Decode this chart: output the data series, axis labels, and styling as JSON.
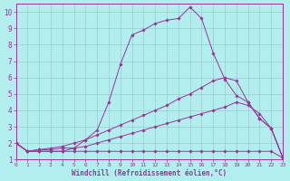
{
  "xlabel": "Windchill (Refroidissement éolien,°C)",
  "bg_color": "#b2eeee",
  "line_color": "#993399",
  "grid_color": "#99cccc",
  "xlim": [
    0,
    23
  ],
  "ylim": [
    1,
    10.5
  ],
  "xticks": [
    0,
    1,
    2,
    3,
    4,
    5,
    6,
    7,
    8,
    9,
    10,
    11,
    12,
    13,
    14,
    15,
    16,
    17,
    18,
    19,
    20,
    21,
    22,
    23
  ],
  "yticks": [
    1,
    2,
    3,
    4,
    5,
    6,
    7,
    8,
    9,
    10
  ],
  "line1_x": [
    0,
    1,
    2,
    3,
    4,
    5,
    6,
    7,
    8,
    9,
    10,
    11,
    12,
    13,
    14,
    15,
    16,
    17,
    18,
    19,
    20,
    21,
    22,
    23
  ],
  "line1_y": [
    2.0,
    1.5,
    1.5,
    1.5,
    1.5,
    1.5,
    1.5,
    1.5,
    1.5,
    1.5,
    1.5,
    1.5,
    1.5,
    1.5,
    1.5,
    1.5,
    1.5,
    1.5,
    1.5,
    1.5,
    1.5,
    1.5,
    1.5,
    1.1
  ],
  "line2_x": [
    0,
    1,
    2,
    3,
    4,
    5,
    6,
    7,
    8,
    9,
    10,
    11,
    12,
    13,
    14,
    15,
    16,
    17,
    18,
    19,
    20,
    21,
    22,
    23
  ],
  "line2_y": [
    2.0,
    1.5,
    1.6,
    1.6,
    1.7,
    1.7,
    1.8,
    2.0,
    2.2,
    2.4,
    2.6,
    2.8,
    3.0,
    3.2,
    3.4,
    3.6,
    3.8,
    4.0,
    4.2,
    4.5,
    4.3,
    3.8,
    2.9,
    1.1
  ],
  "line3_x": [
    0,
    1,
    2,
    3,
    4,
    5,
    6,
    7,
    8,
    9,
    10,
    11,
    12,
    13,
    14,
    15,
    16,
    17,
    18,
    19,
    20,
    21,
    22,
    23
  ],
  "line3_y": [
    2.0,
    1.5,
    1.6,
    1.7,
    1.8,
    2.0,
    2.2,
    2.5,
    2.8,
    3.1,
    3.4,
    3.7,
    4.0,
    4.3,
    4.7,
    5.0,
    5.4,
    5.8,
    6.0,
    5.8,
    4.5,
    3.5,
    2.9,
    1.1
  ],
  "line4_x": [
    0,
    1,
    2,
    3,
    4,
    5,
    6,
    7,
    8,
    9,
    10,
    11,
    12,
    13,
    14,
    15,
    16,
    17,
    18,
    19,
    20,
    21,
    22,
    23
  ],
  "line4_y": [
    2.0,
    1.5,
    1.5,
    1.5,
    1.5,
    1.7,
    2.2,
    2.8,
    4.5,
    6.8,
    8.6,
    8.9,
    9.3,
    9.5,
    9.6,
    10.3,
    9.6,
    7.5,
    5.9,
    4.9,
    4.5,
    3.5,
    2.9,
    1.1
  ]
}
